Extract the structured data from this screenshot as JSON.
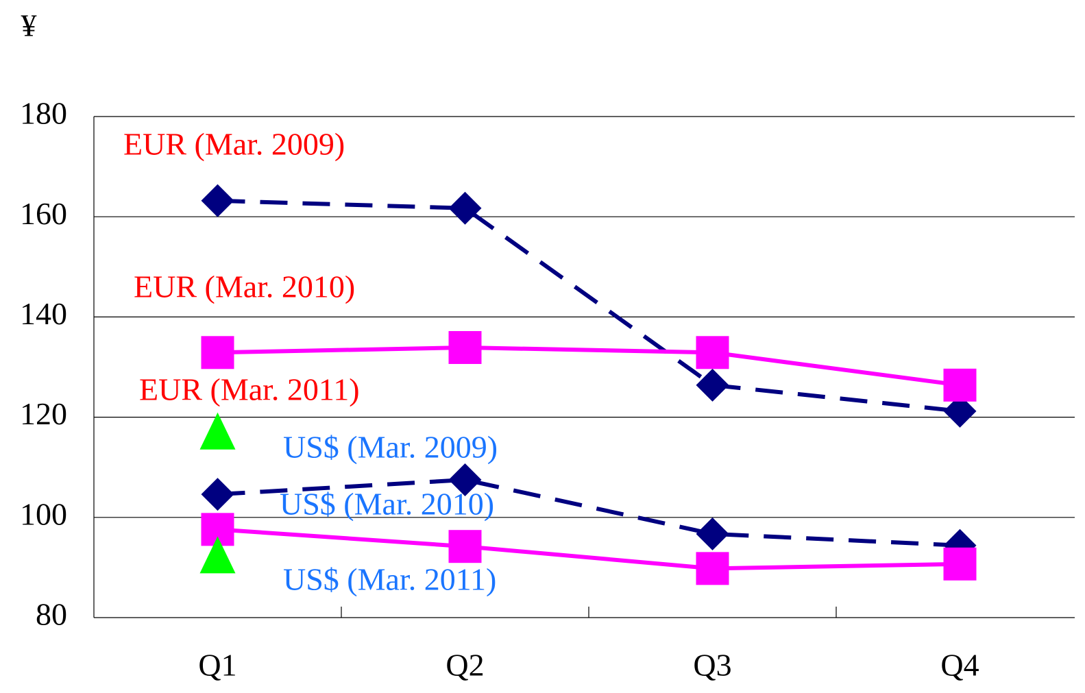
{
  "chart_data": {
    "type": "line",
    "y_label": "¥",
    "categories": [
      "Q1",
      "Q2",
      "Q3",
      "Q4"
    ],
    "ylim": [
      80,
      180
    ],
    "yticks": [
      80,
      100,
      120,
      140,
      160,
      180
    ],
    "grid": true,
    "series": [
      {
        "name": "EUR (Mar. 2009)",
        "color": "#000080",
        "label_color": "#ff0000",
        "line_style": "dashed",
        "marker": "diamond",
        "values": [
          163.2,
          161.7,
          126.4,
          121.2
        ]
      },
      {
        "name": "EUR (Mar. 2010)",
        "color": "#ff00ff",
        "label_color": "#ff0000",
        "line_style": "solid",
        "marker": "square",
        "values": [
          132.9,
          133.9,
          132.9,
          126.4
        ]
      },
      {
        "name": "EUR (Mar. 2011)",
        "color": "#00ff00",
        "label_color": "#ff0000",
        "line_style": "solid",
        "marker": "triangle",
        "values": [
          117.1,
          null,
          null,
          null
        ]
      },
      {
        "name": "US$ (Mar. 2009)",
        "color": "#000080",
        "label_color": "#1a75ff",
        "line_style": "dashed",
        "marker": "diamond",
        "values": [
          104.6,
          107.5,
          96.7,
          94.4
        ]
      },
      {
        "name": "US$ (Mar. 2010)",
        "color": "#ff00ff",
        "label_color": "#1a75ff",
        "line_style": "solid",
        "marker": "square",
        "values": [
          97.6,
          94.2,
          89.8,
          90.7
        ]
      },
      {
        "name": "US$ (Mar. 2011)",
        "color": "#00ff00",
        "label_color": "#1a75ff",
        "line_style": "solid",
        "marker": "triangle",
        "values": [
          92.4,
          null,
          null,
          null
        ]
      }
    ]
  }
}
